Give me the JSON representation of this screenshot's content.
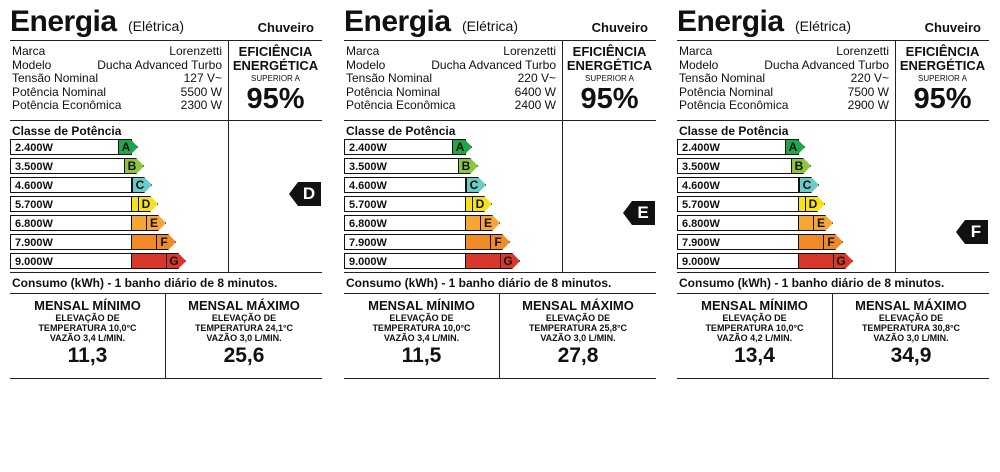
{
  "labels": [
    {
      "title": "Energia",
      "subtitle": "(Elétrica)",
      "product_type": "Chuveiro",
      "specs": [
        {
          "k": "Marca",
          "v": "Lorenzetti"
        },
        {
          "k": "Modelo",
          "v": "Ducha Advanced Turbo"
        },
        {
          "k": "Tensão Nominal",
          "v": "127 V~"
        },
        {
          "k": "Potência Nominal",
          "v": "5500 W"
        },
        {
          "k": "Potência Econômica",
          "v": "2300 W"
        }
      ],
      "efficiency": {
        "l1": "EFICIÊNCIA",
        "l2": "ENERGÉTICA",
        "l3": "SUPERIOR A",
        "value": "95%"
      },
      "classes_title": "Classe de Potência",
      "classes": [
        {
          "watts": "2.400W",
          "letter": "A",
          "color": "#1fa64a"
        },
        {
          "watts": "3.500W",
          "letter": "B",
          "color": "#8cc63f"
        },
        {
          "watts": "4.600W",
          "letter": "C",
          "color": "#6ccbc4"
        },
        {
          "watts": "5.700W",
          "letter": "D",
          "color": "#f5e21a"
        },
        {
          "watts": "6.800W",
          "letter": "E",
          "color": "#f7a535"
        },
        {
          "watts": "7.900W",
          "letter": "F",
          "color": "#f08a24"
        },
        {
          "watts": "9.000W",
          "letter": "G",
          "color": "#d8372b"
        }
      ],
      "rating": "D",
      "consumo": "Consumo (kWh) - 1 banho diário de 8 minutos.",
      "minimo": {
        "title": "MENSAL MÍNIMO",
        "l1": "ELEVAÇÃO DE",
        "l2": "TEMPERATURA 10,0°C",
        "l3": "VAZÃO 3,4 L/MIN.",
        "value": "11,3"
      },
      "maximo": {
        "title": "MENSAL MÁXIMO",
        "l1": "ELEVAÇÃO DE",
        "l2": "TEMPERATURA 24,1°C",
        "l3": "VAZÃO 3,0 L/MIN.",
        "value": "25,6"
      }
    },
    {
      "title": "Energia",
      "subtitle": "(Elétrica)",
      "product_type": "Chuveiro",
      "specs": [
        {
          "k": "Marca",
          "v": "Lorenzetti"
        },
        {
          "k": "Modelo",
          "v": "Ducha Advanced Turbo"
        },
        {
          "k": "Tensão Nominal",
          "v": "220 V~"
        },
        {
          "k": "Potência Nominal",
          "v": "6400 W"
        },
        {
          "k": "Potência Econômica",
          "v": "2400 W"
        }
      ],
      "efficiency": {
        "l1": "EFICIÊNCIA",
        "l2": "ENERGÉTICA",
        "l3": "SUPERIOR A",
        "value": "95%"
      },
      "classes_title": "Classe de Potência",
      "classes": [
        {
          "watts": "2.400W",
          "letter": "A",
          "color": "#1fa64a"
        },
        {
          "watts": "3.500W",
          "letter": "B",
          "color": "#8cc63f"
        },
        {
          "watts": "4.600W",
          "letter": "C",
          "color": "#6ccbc4"
        },
        {
          "watts": "5.700W",
          "letter": "D",
          "color": "#f5e21a"
        },
        {
          "watts": "6.800W",
          "letter": "E",
          "color": "#f7a535"
        },
        {
          "watts": "7.900W",
          "letter": "F",
          "color": "#f08a24"
        },
        {
          "watts": "9.000W",
          "letter": "G",
          "color": "#d8372b"
        }
      ],
      "rating": "E",
      "consumo": "Consumo (kWh) - 1 banho diário de 8 minutos.",
      "minimo": {
        "title": "MENSAL MÍNIMO",
        "l1": "ELEVAÇÃO DE",
        "l2": "TEMPERATURA 10,0°C",
        "l3": "VAZÃO 3,4 L/MIN.",
        "value": "11,5"
      },
      "maximo": {
        "title": "MENSAL MÁXIMO",
        "l1": "ELEVAÇÃO DE",
        "l2": "TEMPERATURA 25,8°C",
        "l3": "VAZÃO 3,0 L/MIN.",
        "value": "27,8"
      }
    },
    {
      "title": "Energia",
      "subtitle": "(Elétrica)",
      "product_type": "Chuveiro",
      "specs": [
        {
          "k": "Marca",
          "v": "Lorenzetti"
        },
        {
          "k": "Modelo",
          "v": "Ducha Advanced Turbo"
        },
        {
          "k": "Tensão Nominal",
          "v": "220 V~"
        },
        {
          "k": "Potência Nominal",
          "v": "7500 W"
        },
        {
          "k": "Potência Econômica",
          "v": "2900 W"
        }
      ],
      "efficiency": {
        "l1": "EFICIÊNCIA",
        "l2": "ENERGÉTICA",
        "l3": "SUPERIOR A",
        "value": "95%"
      },
      "classes_title": "Classe de Potência",
      "classes": [
        {
          "watts": "2.400W",
          "letter": "A",
          "color": "#1fa64a"
        },
        {
          "watts": "3.500W",
          "letter": "B",
          "color": "#8cc63f"
        },
        {
          "watts": "4.600W",
          "letter": "C",
          "color": "#6ccbc4"
        },
        {
          "watts": "5.700W",
          "letter": "D",
          "color": "#f5e21a"
        },
        {
          "watts": "6.800W",
          "letter": "E",
          "color": "#f7a535"
        },
        {
          "watts": "7.900W",
          "letter": "F",
          "color": "#f08a24"
        },
        {
          "watts": "9.000W",
          "letter": "G",
          "color": "#d8372b"
        }
      ],
      "rating": "F",
      "consumo": "Consumo (kWh) - 1 banho diário de 8 minutos.",
      "minimo": {
        "title": "MENSAL MÍNIMO",
        "l1": "ELEVAÇÃO DE",
        "l2": "TEMPERATURA 10,0°C",
        "l3": "VAZÃO 4,2 L/MIN.",
        "value": "13,4"
      },
      "maximo": {
        "title": "MENSAL MÁXIMO",
        "l1": "ELEVAÇÃO DE",
        "l2": "TEMPERATURA 30,8°C",
        "l3": "VAZÃO 3,0 L/MIN.",
        "value": "34,9"
      }
    }
  ]
}
